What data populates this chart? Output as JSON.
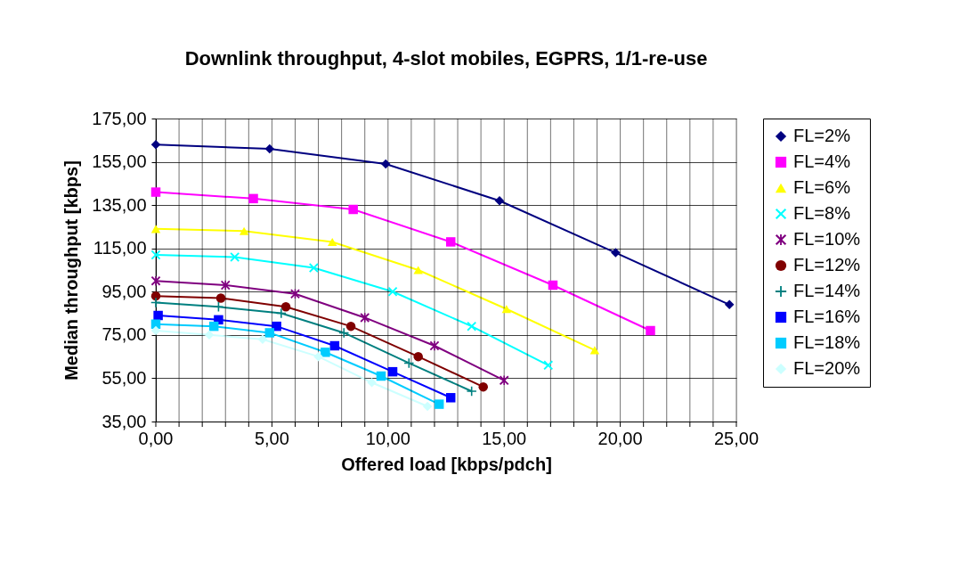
{
  "chart_data": {
    "type": "line",
    "title": "Downlink throughput, 4-slot mobiles, EGPRS, 1/1-re-use",
    "xlabel": "Offered load [kbps/pdch]",
    "ylabel": "Median throughput [kbps]",
    "xlim": [
      0,
      25
    ],
    "xticks": [
      {
        "value": 0,
        "label": "0,00"
      },
      {
        "value": 1,
        "label": null
      },
      {
        "value": 2,
        "label": null
      },
      {
        "value": 3,
        "label": null
      },
      {
        "value": 4,
        "label": null
      },
      {
        "value": 5,
        "label": "5,00"
      },
      {
        "value": 6,
        "label": null
      },
      {
        "value": 7,
        "label": null
      },
      {
        "value": 8,
        "label": null
      },
      {
        "value": 9,
        "label": null
      },
      {
        "value": 10,
        "label": "10,00"
      },
      {
        "value": 11,
        "label": null
      },
      {
        "value": 12,
        "label": null
      },
      {
        "value": 13,
        "label": null
      },
      {
        "value": 14,
        "label": null
      },
      {
        "value": 15,
        "label": "15,00"
      },
      {
        "value": 16,
        "label": null
      },
      {
        "value": 17,
        "label": null
      },
      {
        "value": 18,
        "label": null
      },
      {
        "value": 19,
        "label": null
      },
      {
        "value": 20,
        "label": "20,00"
      },
      {
        "value": 21,
        "label": null
      },
      {
        "value": 22,
        "label": null
      },
      {
        "value": 23,
        "label": null
      },
      {
        "value": 24,
        "label": null
      },
      {
        "value": 25,
        "label": "25,00"
      }
    ],
    "ylim": [
      35,
      175
    ],
    "yticks": [
      {
        "value": 35,
        "label": "35,00"
      },
      {
        "value": 55,
        "label": "55,00"
      },
      {
        "value": 75,
        "label": "75,00"
      },
      {
        "value": 95,
        "label": "95,00"
      },
      {
        "value": 115,
        "label": "115,00"
      },
      {
        "value": 135,
        "label": "135,00"
      },
      {
        "value": 155,
        "label": "155,00"
      },
      {
        "value": 175,
        "label": "175,00"
      }
    ],
    "grid": true,
    "legend": "right",
    "line_style": "solid",
    "series": [
      {
        "name": "FL=2%",
        "color": "#000080",
        "marker": "diamond",
        "x": [
          0,
          4.9,
          9.9,
          14.8,
          19.8,
          24.7
        ],
        "values": [
          163,
          161,
          154,
          137,
          113,
          89
        ]
      },
      {
        "name": "FL=4%",
        "color": "#ff00ff",
        "marker": "square",
        "x": [
          0,
          4.2,
          8.5,
          12.7,
          17.1,
          21.3
        ],
        "values": [
          141,
          138,
          133,
          118,
          98,
          77
        ]
      },
      {
        "name": "FL=6%",
        "color": "#ffff00",
        "marker": "triangle",
        "x": [
          0,
          3.8,
          7.6,
          11.3,
          15.1,
          18.9
        ],
        "values": [
          124,
          123,
          118,
          105,
          87,
          68
        ]
      },
      {
        "name": "FL=8%",
        "color": "#00ffff",
        "marker": "x",
        "x": [
          0,
          3.4,
          6.8,
          10.2,
          13.6,
          16.9
        ],
        "values": [
          112,
          111,
          106,
          95,
          79,
          61
        ]
      },
      {
        "name": "FL=10%",
        "color": "#800080",
        "marker": "star",
        "x": [
          0,
          3.0,
          6.0,
          9.0,
          12.0,
          15.0
        ],
        "values": [
          100,
          98,
          94,
          83,
          70,
          54
        ]
      },
      {
        "name": "FL=12%",
        "color": "#800000",
        "marker": "circle",
        "x": [
          0,
          2.8,
          5.6,
          8.4,
          11.3,
          14.1
        ],
        "values": [
          93,
          92,
          88,
          79,
          65,
          51
        ]
      },
      {
        "name": "FL=14%",
        "color": "#008080",
        "marker": "cross",
        "x": [
          0,
          2.7,
          5.4,
          8.1,
          10.9,
          13.6
        ],
        "values": [
          90,
          88,
          85,
          76,
          62,
          49
        ]
      },
      {
        "name": "FL=16%",
        "color": "#0000ff",
        "marker": "square",
        "x": [
          0.1,
          2.7,
          5.2,
          7.7,
          10.2,
          12.7
        ],
        "values": [
          84,
          82,
          79,
          70,
          58,
          46
        ]
      },
      {
        "name": "FL=18%",
        "color": "#00ccff",
        "marker": "square",
        "x": [
          0,
          2.5,
          4.9,
          7.3,
          9.7,
          12.2
        ],
        "values": [
          80,
          79,
          76,
          67,
          56,
          43
        ]
      },
      {
        "name": "FL=20%",
        "color": "#ccffff",
        "marker": "diamond",
        "x": [
          0,
          2.3,
          4.6,
          7.0,
          9.3,
          11.7
        ],
        "values": [
          77,
          75,
          73,
          65,
          53,
          42
        ]
      }
    ]
  }
}
